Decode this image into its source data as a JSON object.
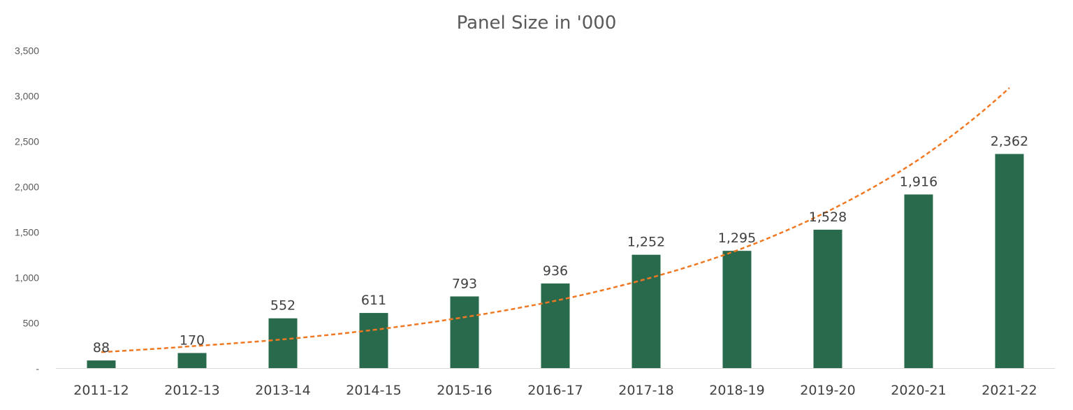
{
  "chart_data": {
    "type": "bar",
    "title": "Panel Size in '000",
    "categories": [
      "2011-12",
      "2012-13",
      "2013-14",
      "2014-15",
      "2015-16",
      "2016-17",
      "2017-18",
      "2018-19",
      "2019-20",
      "2020-21",
      "2021-22"
    ],
    "values": [
      88,
      170,
      552,
      611,
      793,
      936,
      1252,
      1295,
      1528,
      1916,
      2362
    ],
    "data_labels": [
      "88",
      "170",
      "552",
      "611",
      "793",
      "936",
      "1,252",
      "1,295",
      "1,528",
      "1,916",
      "2,362"
    ],
    "ylim": [
      0,
      3500
    ],
    "yticks": [
      0,
      500,
      1000,
      1500,
      2000,
      2500,
      3000,
      3500
    ],
    "ytick_labels": [
      "-",
      "500",
      "1,000",
      "1,500",
      "2,000",
      "2,500",
      "3,000",
      "3,500"
    ],
    "grid": false,
    "legend": "none",
    "bar_color": "#2a6a4c",
    "trendline": {
      "type": "exponential",
      "color": "#f07822",
      "style": "dashed",
      "values": [
        180,
        245,
        320,
        425,
        565,
        745,
        985,
        1300,
        1730,
        2300,
        3090
      ]
    }
  }
}
